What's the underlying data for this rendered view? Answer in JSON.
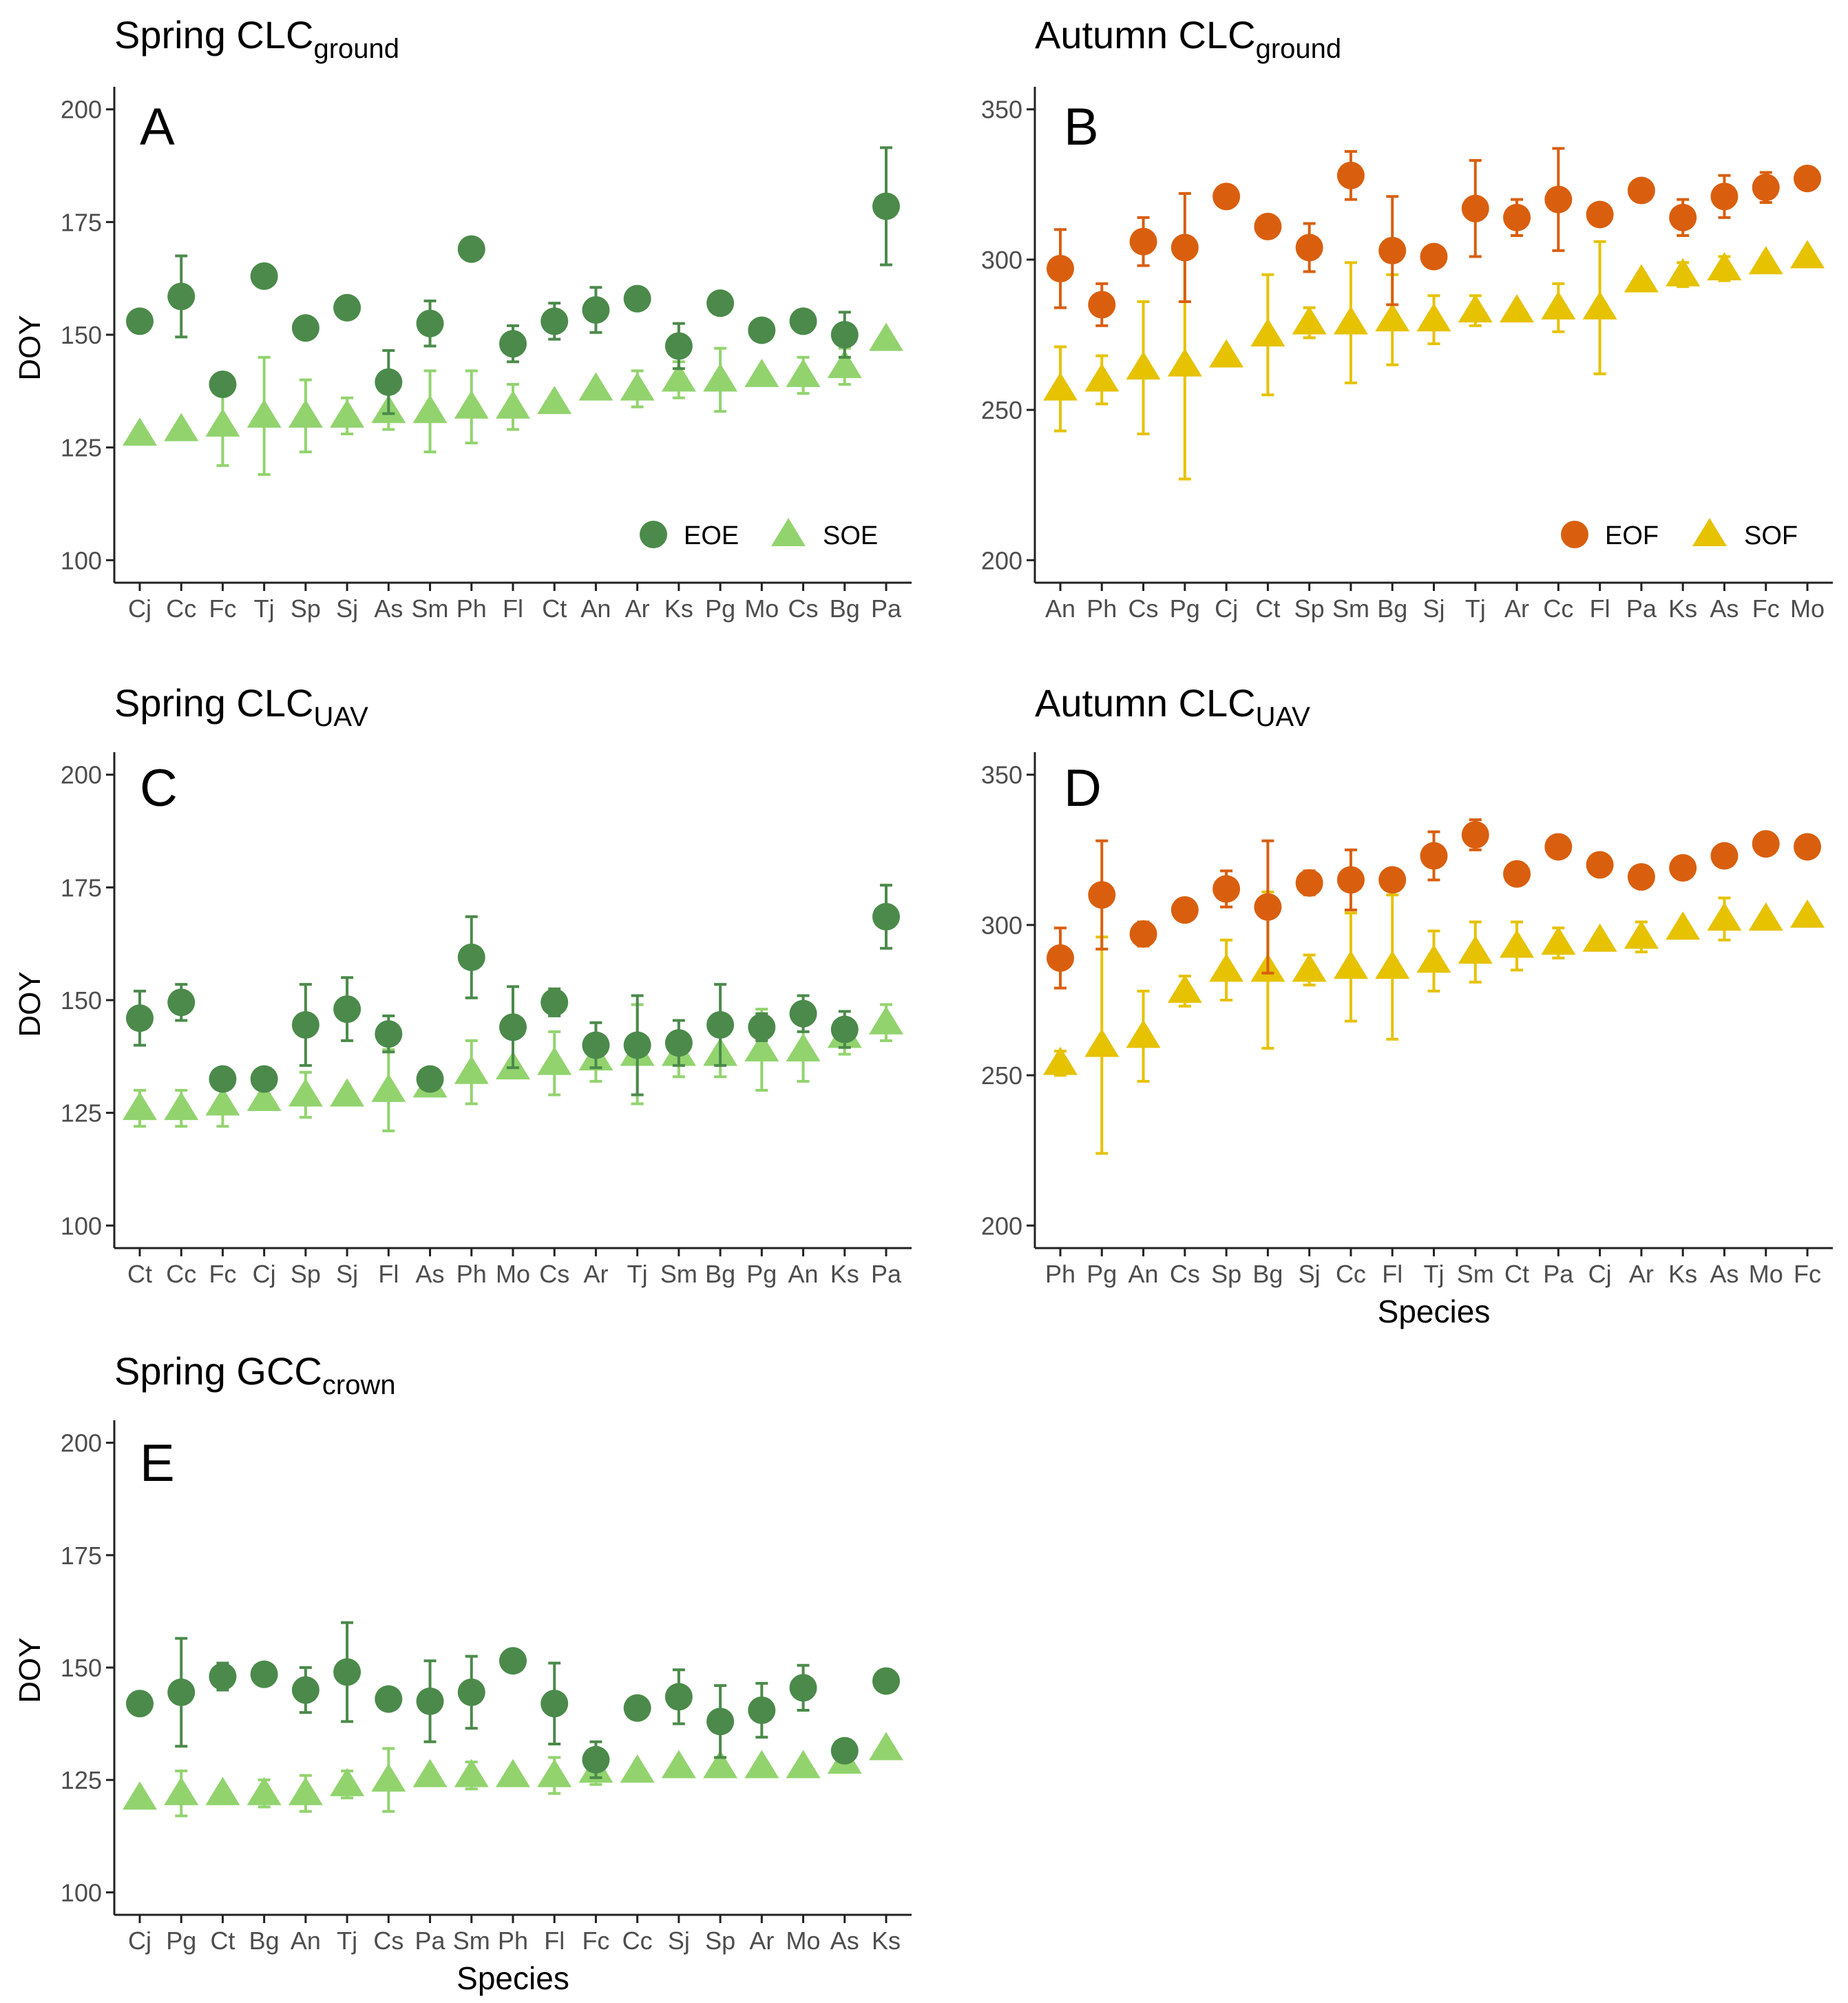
{
  "figure": {
    "x_axis_label": "Species",
    "y_axis_label": "DOY",
    "colors": {
      "eoe": "#4b8a4b",
      "soe": "#92d36e",
      "eof": "#d95f0e",
      "sof": "#e6c200",
      "axis": "#222222",
      "tick_text": "#4d4d4d"
    }
  },
  "chart_data": [
    {
      "type": "scatter",
      "panel_letter": "A",
      "title": "Spring CLC",
      "title_subscript": "ground",
      "xlabel": "",
      "ylabel": "DOY",
      "ylim": [
        95,
        205
      ],
      "yticks": [
        100,
        125,
        150,
        175,
        200
      ],
      "legend_position": "bottom-right",
      "categories": [
        "Cj",
        "Cc",
        "Fc",
        "Tj",
        "Sp",
        "Sj",
        "As",
        "Sm",
        "Ph",
        "Fl",
        "Ct",
        "An",
        "Ar",
        "Ks",
        "Pg",
        "Mo",
        "Cs",
        "Bg",
        "Pa"
      ],
      "series": [
        {
          "name": "EOE",
          "marker": "circle",
          "color": "#4b8a4b",
          "values": [
            153,
            158.5,
            139,
            163,
            151.5,
            156,
            139.5,
            152.5,
            169,
            148,
            153,
            155.5,
            158,
            147.5,
            157,
            151,
            153,
            150,
            178.5
          ],
          "err": [
            0,
            9,
            1,
            0,
            0,
            0,
            7,
            5,
            0,
            4,
            4,
            5,
            0,
            5,
            0,
            0,
            0,
            5,
            13
          ]
        },
        {
          "name": "SOE",
          "marker": "triangle",
          "color": "#92d36e",
          "values": [
            128,
            129,
            130,
            132,
            132,
            132,
            133,
            133,
            134,
            134,
            135,
            138,
            138,
            140,
            140,
            141,
            141,
            143,
            149
          ],
          "err": [
            0,
            0,
            9,
            13,
            8,
            4,
            4,
            9,
            8,
            5,
            0,
            0,
            4,
            4,
            7,
            0,
            4,
            4,
            0
          ]
        }
      ]
    },
    {
      "type": "scatter",
      "panel_letter": "B",
      "title": "Autumn CLC",
      "title_subscript": "ground",
      "xlabel": "",
      "ylabel": "",
      "ylim": [
        192.5,
        357.5
      ],
      "yticks": [
        200,
        250,
        300,
        350
      ],
      "legend_position": "bottom-right",
      "categories": [
        "An",
        "Ph",
        "Cs",
        "Pg",
        "Cj",
        "Ct",
        "Sp",
        "Sm",
        "Bg",
        "Sj",
        "Tj",
        "Ar",
        "Cc",
        "Fl",
        "Pa",
        "Ks",
        "As",
        "Fc",
        "Mo"
      ],
      "series": [
        {
          "name": "EOF",
          "marker": "circle",
          "color": "#d95f0e",
          "values": [
            297,
            285,
            306,
            304,
            321,
            311,
            304,
            328,
            303,
            301,
            317,
            314,
            320,
            315,
            323,
            314,
            321,
            324,
            327
          ],
          "err": [
            13,
            7,
            8,
            18,
            0,
            0,
            8,
            8,
            18,
            0,
            16,
            6,
            17,
            0,
            0,
            6,
            7,
            5,
            0
          ]
        },
        {
          "name": "SOF",
          "marker": "triangle",
          "color": "#e6c200",
          "values": [
            257,
            260,
            264,
            265,
            268,
            275,
            279,
            279,
            280,
            280,
            283,
            283,
            284,
            284,
            293,
            295,
            297,
            299,
            301
          ],
          "err": [
            14,
            8,
            22,
            38,
            0,
            20,
            5,
            20,
            15,
            8,
            5,
            0,
            8,
            22,
            0,
            4,
            4,
            0,
            0
          ]
        }
      ]
    },
    {
      "type": "scatter",
      "panel_letter": "C",
      "title": "Spring CLC",
      "title_subscript": "UAV",
      "xlabel": "",
      "ylabel": "DOY",
      "ylim": [
        95,
        205
      ],
      "yticks": [
        100,
        125,
        150,
        175,
        200
      ],
      "categories": [
        "Ct",
        "Cc",
        "Fc",
        "Cj",
        "Sp",
        "Sj",
        "Fl",
        "As",
        "Ph",
        "Mo",
        "Cs",
        "Ar",
        "Tj",
        "Sm",
        "Bg",
        "Pg",
        "An",
        "Ks",
        "Pa"
      ],
      "series": [
        {
          "name": "EOE",
          "marker": "circle",
          "color": "#4b8a4b",
          "values": [
            146,
            149.5,
            132.5,
            132.5,
            144.5,
            148,
            142.5,
            132.5,
            159.5,
            144,
            149.5,
            140,
            140,
            140.5,
            144.5,
            144,
            147,
            143.5,
            168.5
          ],
          "err": [
            6,
            4,
            0,
            0,
            9,
            7,
            4,
            0,
            9,
            9,
            3,
            5,
            11,
            5,
            9,
            3,
            4,
            4,
            7
          ]
        },
        {
          "name": "SOE",
          "marker": "triangle",
          "color": "#92d36e",
          "values": [
            126,
            126,
            127,
            128,
            129,
            129,
            130,
            131,
            134,
            135,
            136,
            137,
            138,
            138,
            138,
            139,
            139,
            142,
            145
          ],
          "err": [
            4,
            4,
            5,
            0,
            5,
            0,
            9,
            0,
            7,
            0,
            7,
            5,
            11,
            5,
            5,
            9,
            7,
            4,
            4
          ]
        }
      ]
    },
    {
      "type": "scatter",
      "panel_letter": "D",
      "title": "Autumn CLC",
      "title_subscript": "UAV",
      "xlabel": "Species",
      "ylabel": "",
      "ylim": [
        192.5,
        357.5
      ],
      "yticks": [
        200,
        250,
        300,
        350
      ],
      "categories": [
        "Ph",
        "Pg",
        "An",
        "Cs",
        "Sp",
        "Bg",
        "Sj",
        "Cc",
        "Fl",
        "Tj",
        "Sm",
        "Ct",
        "Pa",
        "Cj",
        "Ar",
        "Ks",
        "As",
        "Mo",
        "Fc"
      ],
      "series": [
        {
          "name": "EOF",
          "marker": "circle",
          "color": "#d95f0e",
          "values": [
            289,
            310,
            297,
            305,
            312,
            306,
            314,
            315,
            315,
            323,
            330,
            317,
            326,
            320,
            316,
            319,
            323,
            327,
            326
          ],
          "err": [
            10,
            18,
            4,
            0,
            6,
            22,
            4,
            10,
            0,
            8,
            5,
            0,
            0,
            0,
            0,
            0,
            0,
            0,
            0
          ]
        },
        {
          "name": "SOF",
          "marker": "triangle",
          "color": "#e6c200",
          "values": [
            254,
            260,
            263,
            278,
            285,
            285,
            285,
            286,
            286,
            288,
            291,
            293,
            294,
            295,
            296,
            299,
            302,
            302,
            303
          ],
          "err": [
            4,
            36,
            15,
            5,
            10,
            26,
            5,
            18,
            24,
            10,
            10,
            8,
            5,
            0,
            5,
            0,
            7,
            0,
            0
          ]
        }
      ]
    },
    {
      "type": "scatter",
      "panel_letter": "E",
      "title": "Spring GCC",
      "title_subscript": "crown",
      "xlabel": "Species",
      "ylabel": "DOY",
      "ylim": [
        95,
        205
      ],
      "yticks": [
        100,
        125,
        150,
        175,
        200
      ],
      "categories": [
        "Cj",
        "Pg",
        "Ct",
        "Bg",
        "An",
        "Tj",
        "Cs",
        "Pa",
        "Sm",
        "Ph",
        "Fl",
        "Fc",
        "Cc",
        "Sj",
        "Sp",
        "Ar",
        "Mo",
        "As",
        "Ks"
      ],
      "series": [
        {
          "name": "EOE",
          "marker": "circle",
          "color": "#4b8a4b",
          "values": [
            142,
            144.5,
            148,
            148.5,
            145,
            149,
            143,
            142.5,
            144.5,
            151.5,
            142,
            129.5,
            141,
            143.5,
            138,
            140.5,
            145.5,
            131.5,
            147
          ],
          "err": [
            0,
            12,
            3,
            2,
            5,
            11,
            0,
            9,
            8,
            0,
            9,
            4,
            0,
            6,
            8,
            6,
            5,
            0,
            0
          ]
        },
        {
          "name": "SOE",
          "marker": "triangle",
          "color": "#92d36e",
          "values": [
            121,
            122,
            122,
            122,
            122,
            124,
            125,
            126,
            126,
            126,
            126,
            127,
            127,
            128,
            128,
            128,
            128,
            129,
            132
          ],
          "err": [
            0,
            5,
            0,
            3,
            4,
            3,
            7,
            0,
            3,
            0,
            4,
            3,
            0,
            0,
            0,
            0,
            0,
            0,
            0
          ]
        }
      ]
    }
  ]
}
